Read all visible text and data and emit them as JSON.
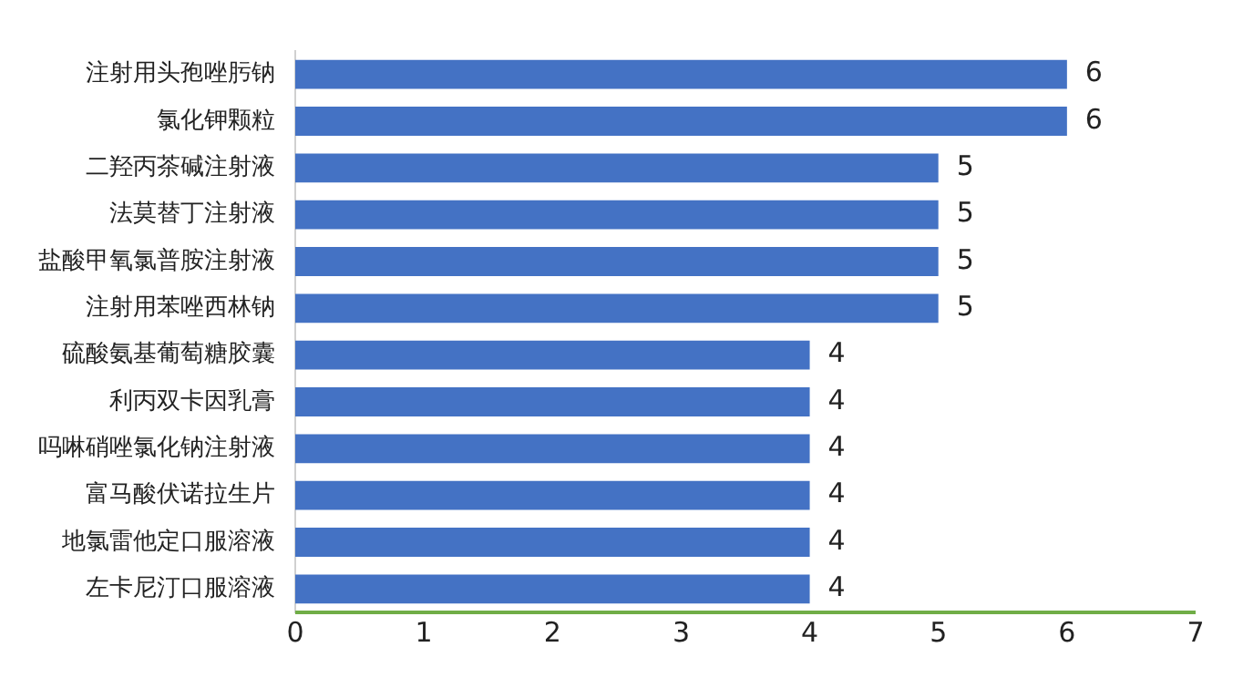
{
  "chart_data": {
    "type": "bar",
    "orientation": "horizontal",
    "categories": [
      "注射用头孢唑肟钠",
      "氯化钾颗粒",
      "二羟丙茶碱注射液",
      "法莫替丁注射液",
      "盐酸甲氧氯普胺注射液",
      "注射用苯唑西林钠",
      "硫酸氨基葡萄糖胶囊",
      "利丙双卡因乳膏",
      "吗啉硝唑氯化钠注射液",
      "富马酸伏诺拉生片",
      "地氯雷他定口服溶液",
      "左卡尼汀口服溶液"
    ],
    "values": [
      6,
      6,
      5,
      5,
      5,
      5,
      4,
      4,
      4,
      4,
      4,
      4
    ],
    "color": "#4472c4",
    "xlim": [
      0,
      7
    ],
    "xticks": [
      0,
      1,
      2,
      3,
      4,
      5,
      6,
      7
    ],
    "data_labels": true,
    "grid": false,
    "legend": false
  }
}
